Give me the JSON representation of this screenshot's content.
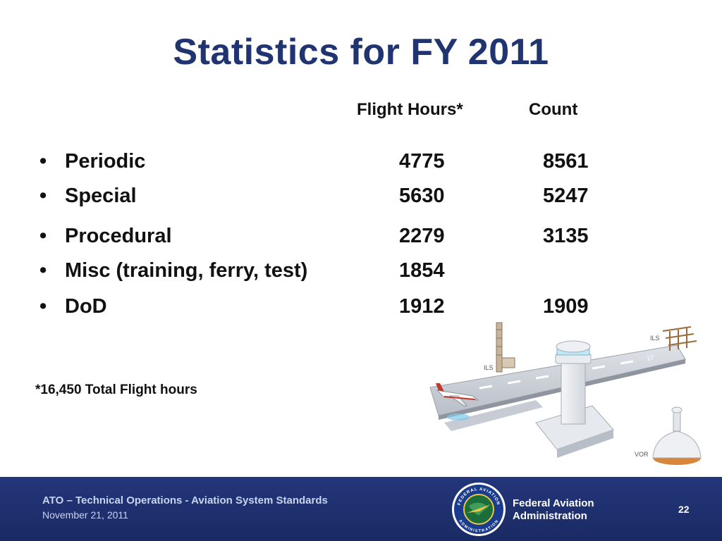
{
  "title": "Statistics for FY 2011",
  "columns": {
    "hours": "Flight Hours*",
    "count": "Count"
  },
  "rows": [
    {
      "bullet": "•",
      "label": "Periodic",
      "hours": "4775",
      "count": "8561"
    },
    {
      "bullet": "•",
      "label": "Special",
      "hours": "5630",
      "count": "5247"
    },
    {
      "bullet": "•",
      "label": "Procedural",
      "hours": "2279",
      "count": "3135"
    },
    {
      "bullet": "•",
      "label": "Misc (training, ferry, test)",
      "hours": "1854",
      "count": ""
    },
    {
      "bullet": "•",
      "label": "DoD",
      "hours": "1912",
      "count": "1909"
    }
  ],
  "footnote": "*16,450 Total Flight hours",
  "illustration": {
    "ils_left": "ILS",
    "ils_right": "ILS",
    "vor": "VOR"
  },
  "footer": {
    "title": "ATO – Technical Operations - Aviation System Standards",
    "date": "November 21, 2011",
    "org_line1": "Federal Aviation",
    "org_line2": "Administration",
    "page": "22",
    "seal_top": "FEDERAL AVIATION",
    "seal_bottom": "ADMINISTRATION"
  },
  "colors": {
    "title": "#1f3471",
    "footer_bg": "#1d2d6b"
  }
}
